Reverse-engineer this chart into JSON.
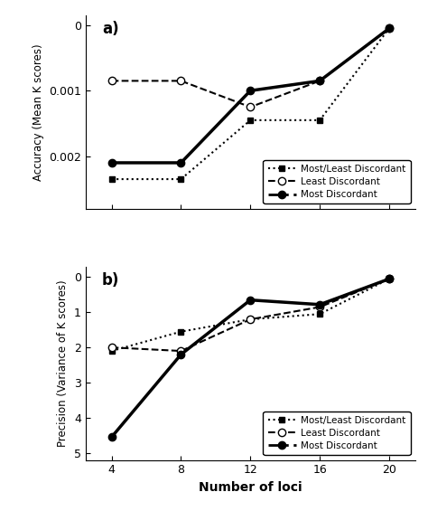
{
  "x": [
    4,
    8,
    12,
    16,
    20
  ],
  "panel_a": {
    "title": "a)",
    "ylabel": "Accuracy (Mean K scores)",
    "ylim": [
      -0.0028,
      0.00015
    ],
    "yticks": [
      0,
      -0.001,
      -0.002
    ],
    "ytick_labels": [
      "0",
      "0.001",
      "0.002"
    ],
    "most_least": [
      -0.00235,
      -0.00235,
      -0.00145,
      -0.00145,
      -5e-05
    ],
    "least": [
      -0.00085,
      -0.00085,
      -0.00125,
      -0.00085,
      -5e-05
    ],
    "most": [
      -0.0021,
      -0.0021,
      -0.001,
      -0.00085,
      -5e-05
    ]
  },
  "panel_b": {
    "title": "b)",
    "ylabel": "Precision (Variance of K scores)",
    "xlabel": "Number of loci",
    "ylim": [
      -5.2,
      0.3
    ],
    "yticks": [
      0,
      -1,
      -2,
      -3,
      -4,
      -5
    ],
    "ytick_labels": [
      "0",
      "1",
      "2",
      "3",
      "4",
      "5"
    ],
    "most_least": [
      -2.1,
      -1.55,
      -1.2,
      -1.05,
      -0.05
    ],
    "least": [
      -2.0,
      -2.1,
      -1.2,
      -0.85,
      -0.05
    ],
    "most": [
      -4.55,
      -2.2,
      -0.65,
      -0.78,
      -0.05
    ]
  },
  "legend": {
    "most_least_label": "Most/Least Discordant",
    "least_label": "Least Discordant",
    "most_label": "Most Discordant"
  }
}
